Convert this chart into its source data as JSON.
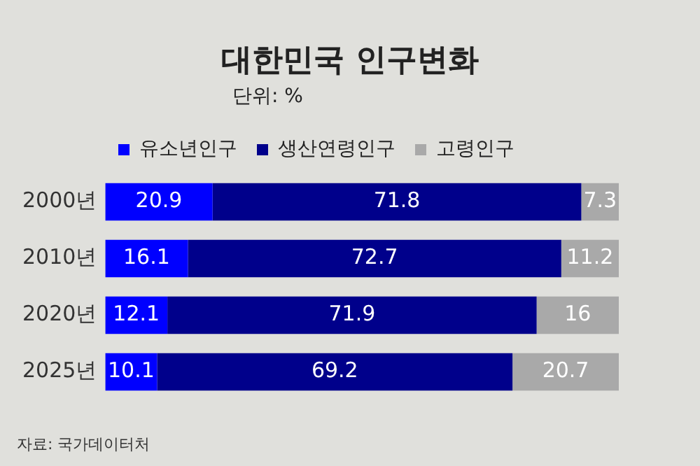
{
  "chart_data": {
    "type": "bar",
    "orientation": "horizontal",
    "stacked": true,
    "title": "대한민국 인구변화",
    "subtitle": "단위: %",
    "categories": [
      "2000년",
      "2010년",
      "2020년",
      "2025년"
    ],
    "series": [
      {
        "name": "유소년인구",
        "color": "#0000ff",
        "values": [
          20.9,
          16.1,
          12.1,
          10.1
        ]
      },
      {
        "name": "생산연령인구",
        "color": "#00008b",
        "values": [
          71.8,
          72.7,
          71.9,
          69.2
        ]
      },
      {
        "name": "고령인구",
        "color": "#a9a9a9",
        "values": [
          7.3,
          11.2,
          16,
          20.7
        ]
      }
    ],
    "data_labels": true,
    "legend": "top",
    "tick_labels": "y",
    "grid": false,
    "annotations": [
      "자료: 국가데이터처"
    ]
  }
}
